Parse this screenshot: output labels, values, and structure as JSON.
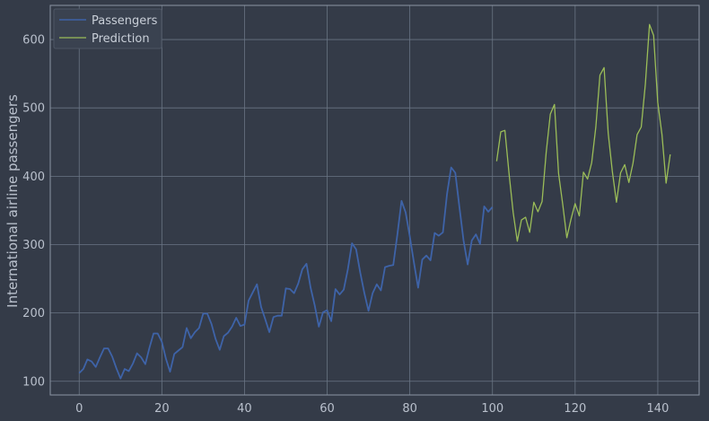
{
  "chart_data": {
    "type": "line",
    "ylabel": "International airline passengers",
    "xlabel": "",
    "xlim": [
      -7,
      150
    ],
    "ylim": [
      80,
      650
    ],
    "xticks": [
      0,
      20,
      40,
      60,
      80,
      100,
      120,
      140
    ],
    "yticks": [
      100,
      200,
      300,
      400,
      500,
      600
    ],
    "grid": true,
    "legend_position": "top-left",
    "colors": {
      "background": "#343b48",
      "grid": "#6a7584",
      "frame": "#8b95a3",
      "text": "#b9c0cc"
    },
    "series": [
      {
        "name": "Passengers",
        "color": "#3e63a8",
        "x_start": 0,
        "values": [
          112,
          118,
          132,
          129,
          121,
          135,
          148,
          148,
          136,
          119,
          104,
          118,
          115,
          126,
          141,
          135,
          125,
          149,
          170,
          170,
          158,
          133,
          114,
          140,
          145,
          150,
          178,
          163,
          172,
          178,
          199,
          199,
          184,
          162,
          146,
          166,
          171,
          180,
          193,
          181,
          183,
          218,
          230,
          242,
          209,
          191,
          172,
          194,
          196,
          196,
          236,
          235,
          229,
          243,
          264,
          272,
          237,
          211,
          180,
          201,
          204,
          188,
          235,
          227,
          234,
          264,
          302,
          293,
          259,
          229,
          203,
          229,
          242,
          233,
          267,
          269,
          270,
          315,
          364,
          347,
          312,
          274,
          237,
          278,
          284,
          277,
          317,
          313,
          318,
          374,
          413,
          405,
          355,
          306,
          271,
          306,
          315,
          301,
          356,
          348,
          355
        ]
      },
      {
        "name": "Prediction",
        "color": "#9bbd58",
        "x_start": 101,
        "values": [
          422,
          465,
          467,
          404,
          347,
          305,
          336,
          340,
          318,
          362,
          348,
          363,
          435,
          491,
          505,
          404,
          359,
          310,
          337,
          360,
          342,
          406,
          396,
          420,
          472,
          548,
          559,
          463,
          407,
          362,
          405,
          417,
          391,
          419,
          461,
          472,
          535,
          622,
          606,
          508,
          461,
          390,
          432
        ]
      }
    ]
  }
}
